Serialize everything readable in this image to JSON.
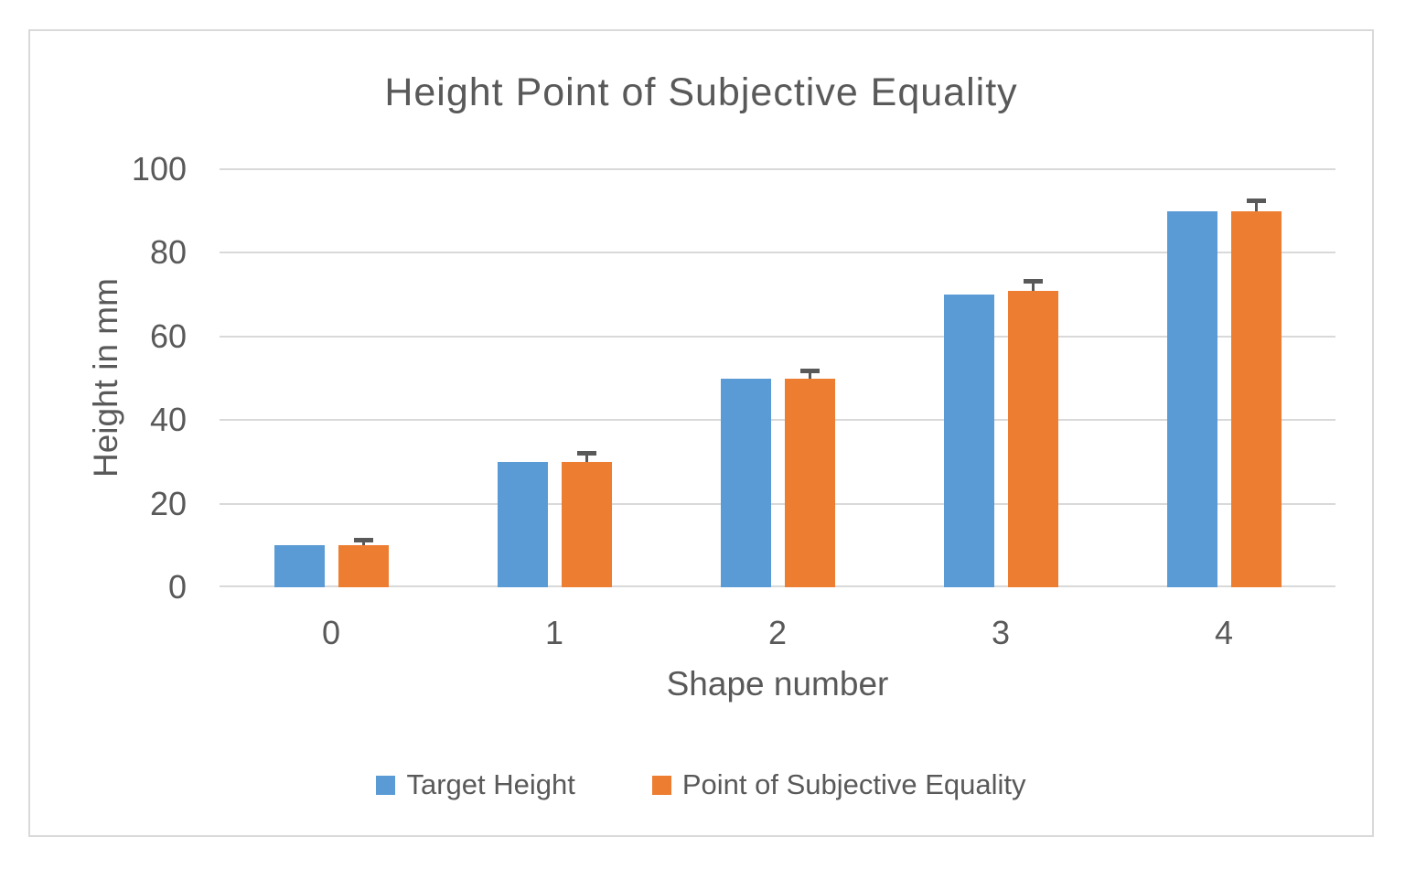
{
  "window": {
    "background": "#FFFFFF",
    "frame_border_color": "#D9D9D9"
  },
  "chart_data": {
    "type": "bar",
    "title": "Height Point of Subjective Equality",
    "xlabel": "Shape number",
    "ylabel": "Height in mm",
    "categories": [
      "0",
      "1",
      "2",
      "3",
      "4"
    ],
    "series": [
      {
        "name": "Target Height",
        "color": "#5B9BD5",
        "values": [
          10,
          30,
          50,
          70,
          90
        ]
      },
      {
        "name": "Point of Subjective Equality",
        "color": "#ED7D31",
        "values": [
          10,
          30,
          50,
          71,
          90
        ],
        "error_plus": [
          1.3,
          2.2,
          1.9,
          2.4,
          2.5
        ],
        "error_color": "#595959"
      }
    ],
    "ylim": [
      0,
      100
    ],
    "yticks": [
      0,
      20,
      40,
      60,
      80,
      100
    ],
    "grid": true,
    "gridline_color": "#D9D9D9",
    "text_color": "#595959",
    "legend_position": "bottom"
  }
}
